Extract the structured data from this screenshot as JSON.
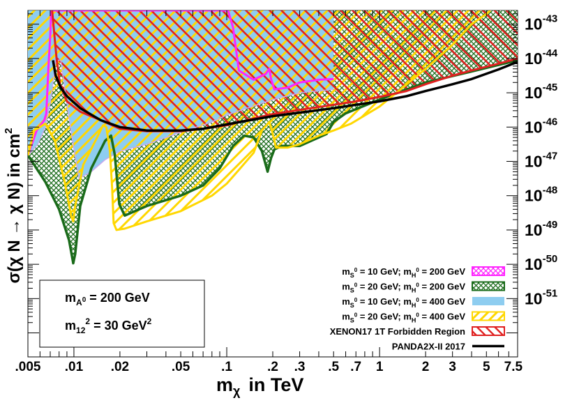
{
  "chart_data": {
    "type": "area",
    "title": "",
    "xlabel": "m",
    "xlabel_sub": "χ",
    "xlabel_unit": "in TeV",
    "ylabel": "σ(χ N → χ N) in cm",
    "ylabel_sup": "2",
    "x_scale": "log",
    "y_scale": "log",
    "xlim": [
      0.005,
      8.0
    ],
    "ylim_exponent": [
      -52.7,
      -42.6
    ],
    "grid": false,
    "legend_position": "bottom-right",
    "x_ticks": [
      {
        "value": 0.005,
        "label": ".005"
      },
      {
        "value": 0.01,
        "label": ".01"
      },
      {
        "value": 0.02,
        "label": ".02"
      },
      {
        "value": 0.05,
        "label": ".05"
      },
      {
        "value": 0.1,
        "label": ".1"
      },
      {
        "value": 0.2,
        "label": ".2"
      },
      {
        "value": 0.3,
        "label": ".3"
      },
      {
        "value": 0.5,
        "label": ".5"
      },
      {
        "value": 0.7,
        "label": ".7"
      },
      {
        "value": 1,
        "label": "1"
      },
      {
        "value": 2,
        "label": "2"
      },
      {
        "value": 3,
        "label": "3"
      },
      {
        "value": 5,
        "label": "5"
      },
      {
        "value": 7.5,
        "label": "7.5"
      }
    ],
    "y_ticks": [
      {
        "exp": -43,
        "base": "10",
        "sup": "-43"
      },
      {
        "exp": -44,
        "base": "10",
        "sup": "-44"
      },
      {
        "exp": -45,
        "base": "10",
        "sup": "-45"
      },
      {
        "exp": -46,
        "base": "10",
        "sup": "-46"
      },
      {
        "exp": -47,
        "base": "10",
        "sup": "-47"
      },
      {
        "exp": -48,
        "base": "10",
        "sup": "-48"
      },
      {
        "exp": -49,
        "base": "10",
        "sup": "-49"
      },
      {
        "exp": -50,
        "base": "10",
        "sup": "-50"
      },
      {
        "exp": -51,
        "base": "10",
        "sup": "-51"
      }
    ],
    "series": [
      {
        "key": "s10_h200",
        "name": "m_S0 = 10 GeV; m_H0 = 200 GeV",
        "style": "crosshatch",
        "color": "#ff22ff",
        "boundary": [
          [
            0.005,
            -46.82
          ],
          [
            0.0057,
            -46.1
          ],
          [
            0.0064,
            -45.8
          ],
          [
            0.0066,
            -45.6
          ],
          [
            0.0068,
            -44.3
          ],
          [
            0.007,
            -43.35
          ],
          [
            0.0071,
            -42.6
          ],
          [
            0.102,
            -42.6
          ],
          [
            0.11,
            -43.1
          ],
          [
            0.12,
            -44.35
          ],
          [
            0.15,
            -44.62
          ],
          [
            0.18,
            -44.45
          ],
          [
            0.19,
            -44.3
          ],
          [
            0.195,
            -44.6
          ],
          [
            0.205,
            -44.9
          ],
          [
            0.25,
            -44.85
          ],
          [
            0.3,
            -44.7
          ],
          [
            0.4,
            -44.62
          ],
          [
            0.5,
            -44.6
          ]
        ]
      },
      {
        "key": "s20_h200",
        "name": "m_S0 = 20 GeV; m_H0 = 200 GeV",
        "style": "crosshatch",
        "color": "#1a6b1a",
        "boundary": [
          [
            0.005,
            -46.82
          ],
          [
            0.0065,
            -47.6
          ],
          [
            0.008,
            -48.4
          ],
          [
            0.0093,
            -49.3
          ],
          [
            0.0099,
            -49.97
          ],
          [
            0.0102,
            -49.7
          ],
          [
            0.011,
            -48.3
          ],
          [
            0.013,
            -47.2
          ],
          [
            0.016,
            -46.4
          ],
          [
            0.0175,
            -46.25
          ],
          [
            0.0185,
            -46.8
          ],
          [
            0.0198,
            -48.25
          ],
          [
            0.0215,
            -48.58
          ],
          [
            0.03,
            -48.3
          ],
          [
            0.05,
            -48.0
          ],
          [
            0.07,
            -47.7
          ],
          [
            0.09,
            -47.2
          ],
          [
            0.11,
            -46.55
          ],
          [
            0.13,
            -46.25
          ],
          [
            0.15,
            -46.3
          ],
          [
            0.17,
            -46.7
          ],
          [
            0.185,
            -47.3
          ],
          [
            0.195,
            -46.9
          ],
          [
            0.205,
            -46.65
          ],
          [
            0.23,
            -46.55
          ],
          [
            0.3,
            -46.55
          ],
          [
            0.4,
            -46.3
          ],
          [
            0.45,
            -46.2
          ],
          [
            0.5,
            -45.85
          ],
          [
            0.6,
            -45.6
          ],
          [
            1,
            -45.2
          ],
          [
            2,
            -44.7
          ],
          [
            4,
            -44.38
          ],
          [
            8,
            -44.05
          ]
        ]
      },
      {
        "key": "s10_h400",
        "name": "m_S0 = 10 GeV; m_H0 = 400 GeV",
        "style": "solid",
        "color": "#8ecdf0",
        "boundary": [
          [
            0.005,
            -46.82
          ],
          [
            0.0058,
            -46.5
          ],
          [
            0.0065,
            -46.0
          ],
          [
            0.007,
            -45.3
          ],
          [
            0.0073,
            -44.7
          ],
          [
            0.0076,
            -44.05
          ],
          [
            0.0082,
            -44.05
          ],
          [
            0.009,
            -45.3
          ],
          [
            0.0098,
            -46.4
          ],
          [
            0.0108,
            -47.5
          ],
          [
            0.013,
            -47.3
          ],
          [
            0.016,
            -46.95
          ],
          [
            0.02,
            -46.7
          ],
          [
            0.03,
            -46.5
          ],
          [
            0.05,
            -46.15
          ],
          [
            0.08,
            -45.85
          ],
          [
            0.1,
            -45.65
          ],
          [
            0.2,
            -45.2
          ],
          [
            0.3,
            -45.0
          ],
          [
            0.5,
            -44.9
          ]
        ]
      },
      {
        "key": "s20_h400",
        "name": "m_S0 = 20 GeV; m_H0 = 400 GeV",
        "style": "hatch",
        "color": "#ffd700",
        "boundary": [
          [
            0.005,
            -46.82
          ],
          [
            0.0055,
            -46.1
          ],
          [
            0.0065,
            -45.9
          ],
          [
            0.0075,
            -46.4
          ],
          [
            0.0087,
            -47.6
          ],
          [
            0.0096,
            -48.6
          ],
          [
            0.0099,
            -48.75
          ],
          [
            0.0102,
            -48.3
          ],
          [
            0.0115,
            -47.1
          ],
          [
            0.014,
            -46.35
          ],
          [
            0.0155,
            -45.95
          ],
          [
            0.0163,
            -46.0
          ],
          [
            0.0172,
            -46.7
          ],
          [
            0.0178,
            -47.8
          ],
          [
            0.0182,
            -48.8
          ],
          [
            0.019,
            -49.0
          ],
          [
            0.0215,
            -48.96
          ],
          [
            0.03,
            -48.75
          ],
          [
            0.05,
            -48.45
          ],
          [
            0.08,
            -48.0
          ],
          [
            0.1,
            -47.65
          ],
          [
            0.12,
            -47.25
          ],
          [
            0.15,
            -46.75
          ],
          [
            0.17,
            -46.1
          ],
          [
            0.19,
            -45.85
          ],
          [
            0.2,
            -46.2
          ],
          [
            0.21,
            -46.6
          ],
          [
            0.25,
            -46.6
          ],
          [
            0.3,
            -46.5
          ],
          [
            0.4,
            -46.25
          ],
          [
            0.5,
            -46.1
          ],
          [
            0.65,
            -45.9
          ],
          [
            1,
            -45.4
          ],
          [
            2,
            -44.3
          ],
          [
            3,
            -43.6
          ],
          [
            4,
            -43.0
          ],
          [
            5,
            -42.7
          ],
          [
            5.3,
            -42.6
          ]
        ]
      },
      {
        "key": "xenon",
        "name": "XENON17 1T Forbidden Region",
        "style": "hatch",
        "color": "#e02020",
        "boundary": [
          [
            0.0072,
            -42.6
          ],
          [
            0.0077,
            -44.0
          ],
          [
            0.0081,
            -44.75
          ],
          [
            0.009,
            -45.25
          ],
          [
            0.011,
            -45.55
          ],
          [
            0.015,
            -45.8
          ],
          [
            0.02,
            -46.05
          ],
          [
            0.03,
            -46.12
          ],
          [
            0.05,
            -46.12
          ],
          [
            0.07,
            -46.05
          ],
          [
            0.1,
            -45.95
          ],
          [
            0.15,
            -45.75
          ],
          [
            0.2,
            -45.62
          ],
          [
            0.3,
            -45.5
          ],
          [
            0.5,
            -45.35
          ],
          [
            0.7,
            -45.25
          ],
          [
            1,
            -45.12
          ],
          [
            1.5,
            -44.95
          ],
          [
            2,
            -44.75
          ],
          [
            3,
            -44.5
          ],
          [
            4,
            -44.35
          ],
          [
            6,
            -44.15
          ],
          [
            8,
            -44.0
          ]
        ]
      },
      {
        "key": "panda",
        "name": "PANDA2X-II 2017",
        "style": "line",
        "color": "#000000",
        "boundary": [
          [
            0.0073,
            -44.05
          ],
          [
            0.0076,
            -44.5
          ],
          [
            0.0082,
            -44.85
          ],
          [
            0.009,
            -45.1
          ],
          [
            0.011,
            -45.45
          ],
          [
            0.015,
            -45.8
          ],
          [
            0.02,
            -46.0
          ],
          [
            0.03,
            -46.1
          ],
          [
            0.05,
            -46.1
          ],
          [
            0.07,
            -46.05
          ],
          [
            0.1,
            -45.92
          ],
          [
            0.15,
            -45.78
          ],
          [
            0.2,
            -45.68
          ],
          [
            0.3,
            -45.58
          ],
          [
            0.5,
            -45.45
          ],
          [
            0.7,
            -45.35
          ],
          [
            1,
            -45.25
          ],
          [
            1.5,
            -45.1
          ],
          [
            2,
            -44.95
          ],
          [
            3,
            -44.75
          ],
          [
            4,
            -44.6
          ],
          [
            6,
            -44.32
          ],
          [
            8,
            -44.1
          ]
        ]
      }
    ]
  },
  "info_box": {
    "line1_prefix": "m",
    "line1_sub": "A",
    "line1_sub_sup": "0",
    "line1_suffix": " = 200 GeV",
    "line2_prefix": "m",
    "line2_sub": "12",
    "line2_sup": "2",
    "line2_mid": " = 30 GeV",
    "line2_sup2": "2"
  },
  "legend": {
    "entries": [
      {
        "series_key": "s10_h200",
        "m1": "m",
        "sub1": "S",
        "sup1": "0",
        "mid": " = 10 GeV; m",
        "sub2": "H",
        "sup2": "0",
        "end": " = 200 GeV"
      },
      {
        "series_key": "s20_h200",
        "m1": "m",
        "sub1": "S",
        "sup1": "0",
        "mid": " = 20 GeV; m",
        "sub2": "H",
        "sup2": "0",
        "end": " = 200 GeV"
      },
      {
        "series_key": "s10_h400",
        "m1": "m",
        "sub1": "S",
        "sup1": "0",
        "mid": " = 10 GeV; m",
        "sub2": "H",
        "sup2": "0",
        "end": " = 400 GeV"
      },
      {
        "series_key": "s20_h400",
        "m1": "m",
        "sub1": "S",
        "sup1": "0",
        "mid": " = 20 GeV; m",
        "sub2": "H",
        "sup2": "0",
        "end": " = 400 GeV"
      },
      {
        "series_key": "xenon",
        "text": "XENON17 1T Forbidden Region"
      },
      {
        "series_key": "panda",
        "text": "PANDA2X-II 2017"
      }
    ]
  }
}
